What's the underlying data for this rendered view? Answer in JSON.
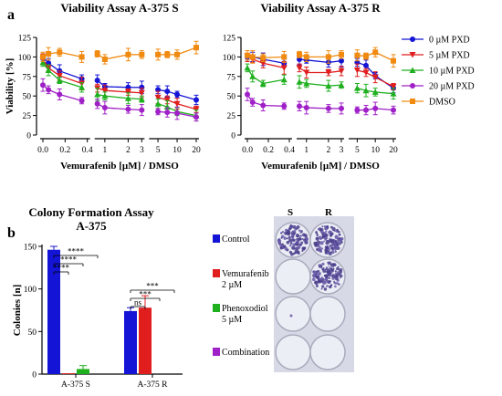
{
  "panels": {
    "a": "a",
    "b": "b"
  },
  "viability": {
    "x_tick_labels": [
      "0.0",
      "0.2",
      "0.4",
      "1",
      "2",
      "3",
      "5",
      "10",
      "20"
    ],
    "x_label": "Vemurafenib [µM] / DMSO",
    "y_label": "Viability [%]",
    "y_ticks": [
      0,
      25,
      50,
      75,
      100,
      125
    ],
    "legend": [
      {
        "name": "0 µM PXD",
        "color": "#1414d6",
        "marker": "circle"
      },
      {
        "name": "5 µM PXD",
        "color": "#e01e1e",
        "marker": "triangle-down"
      },
      {
        "name": "10 µM PXD",
        "color": "#1fb01f",
        "marker": "triangle-up"
      },
      {
        "name": "20 µM PXD",
        "color": "#a020c8",
        "marker": "circle"
      },
      {
        "name": "DMSO",
        "color": "#f08a10",
        "marker": "square"
      }
    ]
  },
  "chart_data": [
    {
      "type": "line",
      "title": "Viability Assay A-375 S",
      "x": [
        0,
        0.05,
        0.15,
        0.35,
        0.8,
        1,
        2,
        3,
        5,
        7,
        10,
        20
      ],
      "segments": [
        [
          0,
          0.4
        ],
        [
          0.8,
          3
        ],
        [
          4,
          20
        ]
      ],
      "ylim": [
        0,
        125
      ],
      "series": [
        {
          "name": "0 µM PXD",
          "values": [
            100,
            92,
            82,
            72,
            70,
            62,
            61,
            61,
            58,
            56,
            52,
            45
          ]
        },
        {
          "name": "5 µM PXD",
          "values": [
            97,
            86,
            76,
            66,
            60,
            57,
            55,
            54,
            48,
            45,
            40,
            33
          ]
        },
        {
          "name": "10 µM PXD",
          "values": [
            93,
            83,
            70,
            61,
            52,
            50,
            47,
            46,
            40,
            36,
            30,
            25
          ]
        },
        {
          "name": "20 µM PXD",
          "values": [
            64,
            58,
            52,
            44,
            40,
            35,
            33,
            32,
            30,
            29,
            28,
            23
          ]
        },
        {
          "name": "DMSO",
          "values": [
            100,
            104,
            106,
            100,
            104,
            97,
            103,
            103,
            103,
            103,
            103,
            112
          ]
        }
      ]
    },
    {
      "type": "line",
      "title": "Viability Assay A-375 R",
      "x": [
        0,
        0.05,
        0.15,
        0.35,
        0.8,
        1,
        2,
        3,
        5,
        7,
        10,
        20
      ],
      "segments": [
        [
          0,
          0.4
        ],
        [
          0.8,
          3
        ],
        [
          4,
          20
        ]
      ],
      "ylim": [
        0,
        125
      ],
      "series": [
        {
          "name": "0 µM PXD",
          "values": [
            100,
            100,
            97,
            92,
            97,
            96,
            93,
            95,
            93,
            89,
            76,
            60
          ]
        },
        {
          "name": "5 µM PXD",
          "values": [
            101,
            97,
            92,
            86,
            86,
            80,
            80,
            82,
            83,
            80,
            74,
            62
          ]
        },
        {
          "name": "10 µM PXD",
          "values": [
            86,
            75,
            66,
            71,
            68,
            66,
            63,
            64,
            60,
            57,
            55,
            53
          ]
        },
        {
          "name": "20 µM PXD",
          "values": [
            52,
            42,
            38,
            37,
            37,
            35,
            34,
            34,
            32,
            32,
            34,
            32
          ]
        },
        {
          "name": "DMSO",
          "values": [
            102,
            100,
            99,
            100,
            103,
            100,
            100,
            103,
            102,
            101,
            106,
            95
          ]
        }
      ]
    },
    {
      "type": "bar",
      "title": "Colony Formation Assay A-375",
      "categories": [
        "A-375 S",
        "A-375 R"
      ],
      "ylabel": "Colonies [n]",
      "ylim": [
        0,
        150
      ],
      "yticks": [
        0,
        50,
        100,
        150
      ],
      "series": [
        {
          "name": "Control",
          "values": [
            146,
            74
          ]
        },
        {
          "name": "Vemurafenib 2 µM",
          "values": [
            1,
            78
          ]
        },
        {
          "name": "Phenoxodiol 5 µM",
          "values": [
            6,
            0
          ]
        },
        {
          "name": "Combination",
          "values": [
            0,
            0
          ]
        }
      ],
      "significance": {
        "A-375 S": [
          "****",
          "****",
          "****"
        ],
        "A-375 R": [
          "ns",
          "***",
          "***"
        ]
      }
    }
  ],
  "colony": {
    "title_line1": "Colony Formation Assay",
    "title_line2": "A-375",
    "legend": [
      {
        "lines": [
          "Control"
        ],
        "color": "#1414d6"
      },
      {
        "lines": [
          "Vemurafenib",
          "2 µM"
        ],
        "color": "#e01e1e"
      },
      {
        "lines": [
          "Phenoxodiol",
          "5 µM"
        ],
        "color": "#1fb01f"
      },
      {
        "lines": [
          "Combination"
        ],
        "color": "#a020c8"
      }
    ],
    "plate_columns": [
      "S",
      "R"
    ],
    "plate_wells": [
      [
        "dense",
        "dense"
      ],
      [
        "empty",
        "dense"
      ],
      [
        "empty",
        "empty"
      ],
      [
        "empty",
        "empty"
      ]
    ]
  }
}
